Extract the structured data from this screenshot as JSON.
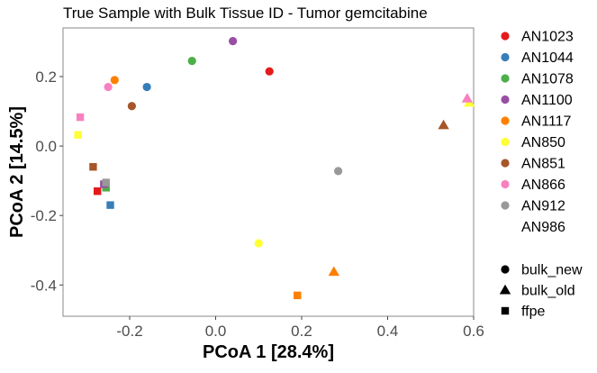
{
  "chart_data": {
    "type": "scatter",
    "title": "True Sample with Bulk Tissue ID - Tumor gemcitabine",
    "xlabel": "PCoA 1 [28.4%]",
    "ylabel": "PCoA 2 [14.5%]",
    "xlim": [
      -0.355,
      0.6
    ],
    "ylim": [
      -0.49,
      0.34
    ],
    "x_ticks": [
      -0.2,
      0.0,
      0.2,
      0.4,
      0.6
    ],
    "x_tick_labels": [
      "-0.2",
      "0.0",
      "0.2",
      "0.4",
      "0.6"
    ],
    "y_ticks": [
      -0.4,
      -0.2,
      0.0,
      0.2
    ],
    "y_tick_labels": [
      "-0.4",
      "-0.2",
      "0.0",
      "0.2"
    ],
    "grid": false,
    "legend_position": "right",
    "color_legend": [
      {
        "label": "AN1023",
        "color": "#E41A1C"
      },
      {
        "label": "AN1044",
        "color": "#377EB8"
      },
      {
        "label": "AN1078",
        "color": "#4DAF4A"
      },
      {
        "label": "AN1100",
        "color": "#984EA3"
      },
      {
        "label": "AN1117",
        "color": "#FF7F00"
      },
      {
        "label": "AN850",
        "color": "#FFFF33"
      },
      {
        "label": "AN851",
        "color": "#A65628"
      },
      {
        "label": "AN866",
        "color": "#F781BF"
      },
      {
        "label": "AN912",
        "color": "#999999"
      },
      {
        "label": "AN986",
        "color": null
      }
    ],
    "shape_legend": [
      {
        "label": "bulk_new",
        "shape": "circle"
      },
      {
        "label": "bulk_old",
        "shape": "triangle"
      },
      {
        "label": "ffpe",
        "shape": "square"
      }
    ],
    "points": [
      {
        "x": 0.125,
        "y": 0.215,
        "group": "AN1023",
        "shape": "circle"
      },
      {
        "x": -0.16,
        "y": 0.17,
        "group": "AN1044",
        "shape": "circle"
      },
      {
        "x": -0.055,
        "y": 0.245,
        "group": "AN1078",
        "shape": "circle"
      },
      {
        "x": 0.04,
        "y": 0.302,
        "group": "AN1100",
        "shape": "circle"
      },
      {
        "x": -0.235,
        "y": 0.19,
        "group": "AN1117",
        "shape": "circle"
      },
      {
        "x": 0.1,
        "y": -0.28,
        "group": "AN850",
        "shape": "circle"
      },
      {
        "x": -0.195,
        "y": 0.115,
        "group": "AN851",
        "shape": "circle"
      },
      {
        "x": -0.25,
        "y": 0.17,
        "group": "AN866",
        "shape": "circle"
      },
      {
        "x": 0.285,
        "y": -0.072,
        "group": "AN912",
        "shape": "circle"
      },
      {
        "x": 0.275,
        "y": -0.362,
        "group": "AN1117",
        "shape": "triangle"
      },
      {
        "x": 0.53,
        "y": 0.06,
        "group": "AN851",
        "shape": "triangle"
      },
      {
        "x": 0.59,
        "y": 0.125,
        "group": "AN850",
        "shape": "triangle"
      },
      {
        "x": 0.585,
        "y": 0.137,
        "group": "AN866",
        "shape": "triangle"
      },
      {
        "x": -0.275,
        "y": -0.13,
        "group": "AN1023",
        "shape": "square"
      },
      {
        "x": -0.245,
        "y": -0.17,
        "group": "AN1044",
        "shape": "square"
      },
      {
        "x": -0.255,
        "y": -0.12,
        "group": "AN1078",
        "shape": "square"
      },
      {
        "x": -0.26,
        "y": -0.11,
        "group": "AN1100",
        "shape": "square"
      },
      {
        "x": 0.19,
        "y": -0.43,
        "group": "AN1117",
        "shape": "square"
      },
      {
        "x": -0.32,
        "y": 0.032,
        "group": "AN850",
        "shape": "square"
      },
      {
        "x": -0.285,
        "y": -0.06,
        "group": "AN851",
        "shape": "square"
      },
      {
        "x": -0.315,
        "y": 0.083,
        "group": "AN866",
        "shape": "square"
      },
      {
        "x": -0.255,
        "y": -0.105,
        "group": "AN912",
        "shape": "square"
      }
    ]
  }
}
